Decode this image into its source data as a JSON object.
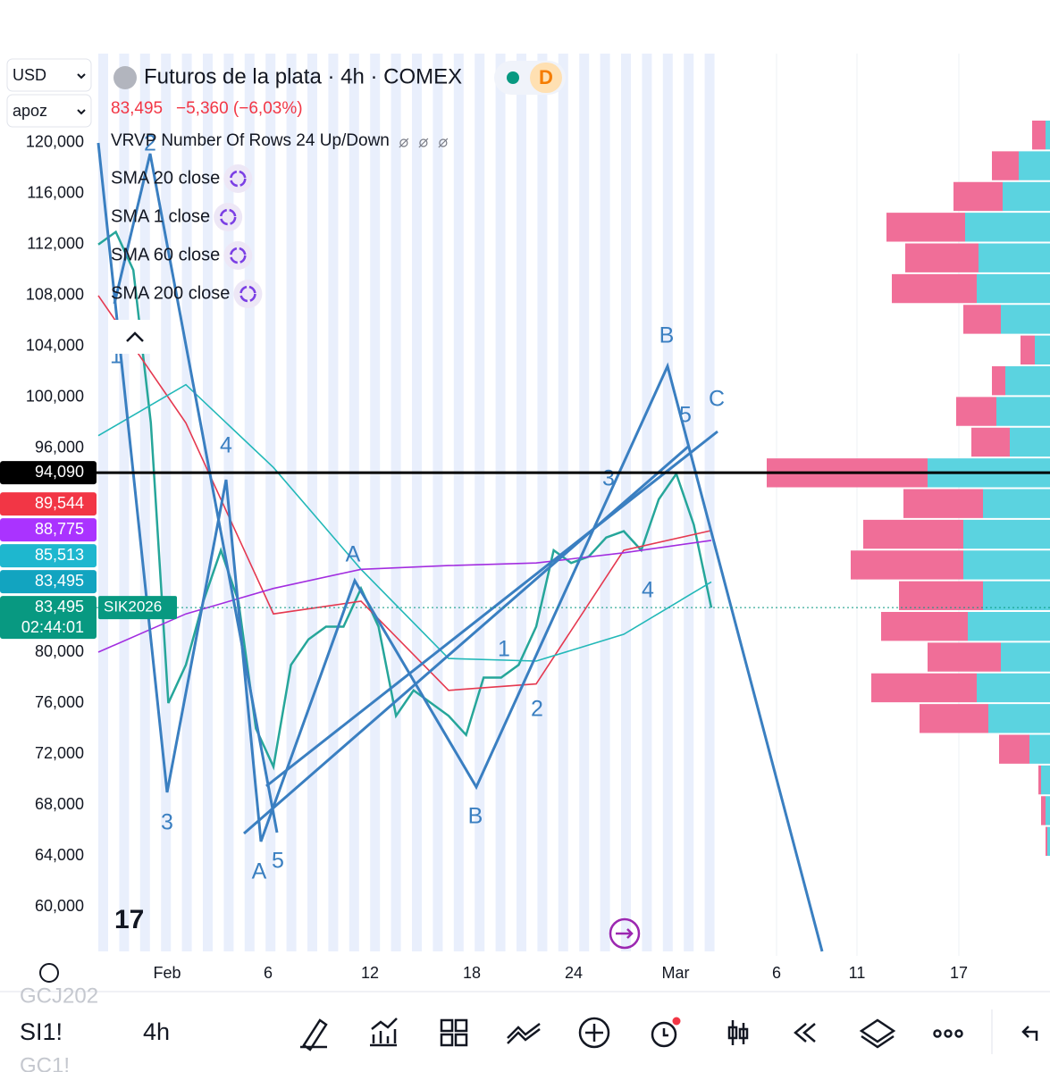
{
  "header": {
    "currency": "USD",
    "unit": "apoz",
    "title": "Futuros de la plata · 4h · COMEX",
    "interval_badge": "D",
    "last_price": "83,495",
    "change": "−5,360 (−6,03%)"
  },
  "indicators": [
    "VRVP Number Of Rows 24 Up/Down",
    "SMA 20 close",
    "SMA 1 close",
    "SMA 60 close",
    "SMA 200 close"
  ],
  "x_axis_labels": [
    "Feb",
    "6",
    "12",
    "18",
    "24",
    "Mar",
    "6",
    "11",
    "17"
  ],
  "chart_data": {
    "type": "line",
    "ylim": [
      56500,
      127000
    ],
    "yticks": [
      {
        "value": 120000,
        "label": "120,000"
      },
      {
        "value": 116000,
        "label": "116,000"
      },
      {
        "value": 112000,
        "label": "112,000"
      },
      {
        "value": 108000,
        "label": "108,000"
      },
      {
        "value": 104000,
        "label": "104,000"
      },
      {
        "value": 100000,
        "label": "100,000"
      },
      {
        "value": 96000,
        "label": "96,000"
      },
      {
        "value": 80000,
        "label": "80,000"
      },
      {
        "value": 76000,
        "label": "76,000"
      },
      {
        "value": 72000,
        "label": "72,000"
      },
      {
        "value": 68000,
        "label": "68,000"
      },
      {
        "value": 64000,
        "label": "64,000"
      },
      {
        "value": 60000,
        "label": "60,000"
      }
    ],
    "series": [
      {
        "name": "SIK2026",
        "color": "#26a69a",
        "values": [
          112000,
          113000,
          110000,
          98000,
          76000,
          79000,
          84000,
          88000,
          84000,
          74000,
          71000,
          79000,
          81000,
          82000,
          82000,
          85000,
          82000,
          75000,
          77000,
          76000,
          75000,
          73500,
          78000,
          78000,
          79000,
          82000,
          88000,
          87000,
          87500,
          89000,
          89500,
          88000,
          92000,
          94000,
          90000,
          83495
        ]
      },
      {
        "name": "SMA 20 close",
        "color": "#e53950",
        "values": [
          108000,
          98000,
          83000,
          84000,
          77000,
          77500,
          88000,
          89544
        ]
      },
      {
        "name": "SMA 60 close",
        "color": "#22b8b8",
        "values": [
          97000,
          101000,
          94500,
          86500,
          79500,
          79300,
          81400,
          85513
        ]
      },
      {
        "name": "SMA 200 close",
        "color": "#a22ee0",
        "values": [
          80000,
          83000,
          85000,
          86500,
          86800,
          87000,
          87800,
          88775
        ]
      }
    ],
    "price_labels": [
      {
        "value": 94090,
        "label": "94,090",
        "color": "#000000"
      },
      {
        "value": 89544,
        "label": "89,544",
        "color": "#f23645"
      },
      {
        "value": 88775,
        "label": "88,775",
        "color": "#aa33ff"
      },
      {
        "value": 85513,
        "label": "85,513",
        "color": "#1eb7cf"
      },
      {
        "value": 83495,
        "label": "83,495",
        "color": "#12a4c0"
      },
      {
        "value": 83495,
        "label": "83,495",
        "color": "#089981"
      }
    ],
    "symbol_label": "SIK2026",
    "countdown": "02:44:01",
    "volume_profile": {
      "up_color": "#5bd3e0",
      "down_color": "#f06e98",
      "up": [
        5,
        35,
        53,
        95,
        80,
        82,
        55,
        17,
        50,
        60,
        45,
        137,
        75,
        97,
        97,
        75,
        92,
        55,
        82,
        69,
        23,
        10,
        5,
        3
      ],
      "down": [
        15,
        30,
        55,
        88,
        82,
        95,
        42,
        16,
        15,
        45,
        43,
        180,
        89,
        112,
        126,
        94,
        97,
        82,
        118,
        77,
        34,
        3,
        5,
        2
      ]
    },
    "wave_labels": [
      "1",
      "2",
      "3",
      "4",
      "A",
      "5",
      "A",
      "B",
      "1",
      "2",
      "3",
      "4",
      "5",
      "B",
      "C"
    ]
  },
  "toolbar": {
    "symbol": "SI1!",
    "interval": "4h",
    "prev_symbol": "GCJ202",
    "next_symbol": "GC1!"
  }
}
